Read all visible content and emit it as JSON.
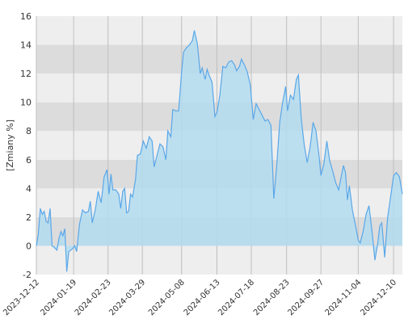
{
  "chart_data": {
    "type": "area",
    "ylabel": "[Zmiany %]",
    "xlabel": "",
    "title": "",
    "xlim": [
      "2023-12-12",
      "2024-12-19"
    ],
    "ylim": [
      -2,
      16
    ],
    "yticks": [
      -2,
      0,
      2,
      4,
      6,
      8,
      10,
      12,
      14,
      16
    ],
    "xticks": [
      "2023-12-12",
      "2024-01-19",
      "2024-02-23",
      "2024-03-29",
      "2024-05-08",
      "2024-06-13",
      "2024-07-18",
      "2024-08-23",
      "2024-09-27",
      "2024-11-04",
      "2024-12-10"
    ],
    "grid": true,
    "colors": {
      "line": "#5aa7e8",
      "fill": "#b3dcf0",
      "band_dark": "#dcdcdc",
      "band_light": "#eeeeee",
      "gridline": "#bfbfbf"
    },
    "series": [
      {
        "values": [
          [
            "2023-12-12",
            0.0
          ],
          [
            "2023-12-14",
            0.8
          ],
          [
            "2023-12-16",
            2.6
          ],
          [
            "2023-12-18",
            2.2
          ],
          [
            "2023-12-20",
            2.4
          ],
          [
            "2023-12-22",
            1.7
          ],
          [
            "2023-12-24",
            1.6
          ],
          [
            "2023-12-26",
            2.6
          ],
          [
            "2023-12-28",
            0.0
          ],
          [
            "2023-12-30",
            -0.1
          ],
          [
            "2024-01-02",
            -0.3
          ],
          [
            "2024-01-04",
            0.5
          ],
          [
            "2024-01-06",
            1.0
          ],
          [
            "2024-01-08",
            0.7
          ],
          [
            "2024-01-10",
            1.2
          ],
          [
            "2024-01-12",
            -1.8
          ],
          [
            "2024-01-14",
            -0.4
          ],
          [
            "2024-01-16",
            -0.3
          ],
          [
            "2024-01-18",
            -0.2
          ],
          [
            "2024-01-20",
            0.0
          ],
          [
            "2024-01-22",
            -0.4
          ],
          [
            "2024-01-25",
            1.5
          ],
          [
            "2024-01-28",
            2.5
          ],
          [
            "2024-01-31",
            2.3
          ],
          [
            "2024-02-03",
            2.4
          ],
          [
            "2024-02-05",
            3.1
          ],
          [
            "2024-02-07",
            1.6
          ],
          [
            "2024-02-10",
            2.5
          ],
          [
            "2024-02-13",
            3.8
          ],
          [
            "2024-02-16",
            3.0
          ],
          [
            "2024-02-19",
            4.8
          ],
          [
            "2024-02-22",
            5.3
          ],
          [
            "2024-02-24",
            3.6
          ],
          [
            "2024-02-26",
            5.0
          ],
          [
            "2024-02-28",
            3.9
          ],
          [
            "2024-03-02",
            3.9
          ],
          [
            "2024-03-05",
            3.6
          ],
          [
            "2024-03-07",
            2.6
          ],
          [
            "2024-03-09",
            3.8
          ],
          [
            "2024-03-11",
            4.0
          ],
          [
            "2024-03-13",
            2.3
          ],
          [
            "2024-03-15",
            2.4
          ],
          [
            "2024-03-17",
            3.6
          ],
          [
            "2024-03-19",
            3.4
          ],
          [
            "2024-03-22",
            4.6
          ],
          [
            "2024-03-24",
            6.3
          ],
          [
            "2024-03-27",
            6.4
          ],
          [
            "2024-03-30",
            7.3
          ],
          [
            "2024-04-02",
            6.8
          ],
          [
            "2024-04-05",
            7.6
          ],
          [
            "2024-04-08",
            7.3
          ],
          [
            "2024-04-10",
            5.5
          ],
          [
            "2024-04-13",
            6.3
          ],
          [
            "2024-04-16",
            7.1
          ],
          [
            "2024-04-19",
            6.9
          ],
          [
            "2024-04-22",
            6.0
          ],
          [
            "2024-04-24",
            8.0
          ],
          [
            "2024-04-27",
            7.6
          ],
          [
            "2024-04-29",
            9.5
          ],
          [
            "2024-05-02",
            9.4
          ],
          [
            "2024-05-05",
            9.4
          ],
          [
            "2024-05-08",
            12.1
          ],
          [
            "2024-05-10",
            13.5
          ],
          [
            "2024-05-13",
            13.8
          ],
          [
            "2024-05-16",
            14.0
          ],
          [
            "2024-05-19",
            14.3
          ],
          [
            "2024-05-21",
            15.0
          ],
          [
            "2024-05-24",
            14.1
          ],
          [
            "2024-05-27",
            12.0
          ],
          [
            "2024-05-29",
            12.4
          ],
          [
            "2024-06-01",
            11.6
          ],
          [
            "2024-06-03",
            12.3
          ],
          [
            "2024-06-05",
            11.9
          ],
          [
            "2024-06-08",
            11.4
          ],
          [
            "2024-06-11",
            9.0
          ],
          [
            "2024-06-13",
            9.3
          ],
          [
            "2024-06-16",
            10.5
          ],
          [
            "2024-06-19",
            12.5
          ],
          [
            "2024-06-22",
            12.4
          ],
          [
            "2024-06-25",
            12.8
          ],
          [
            "2024-06-28",
            12.9
          ],
          [
            "2024-07-01",
            12.6
          ],
          [
            "2024-07-03",
            12.2
          ],
          [
            "2024-07-06",
            12.5
          ],
          [
            "2024-07-08",
            13.0
          ],
          [
            "2024-07-11",
            12.6
          ],
          [
            "2024-07-14",
            12.1
          ],
          [
            "2024-07-17",
            11.2
          ],
          [
            "2024-07-20",
            8.8
          ],
          [
            "2024-07-23",
            9.9
          ],
          [
            "2024-07-26",
            9.5
          ],
          [
            "2024-07-29",
            9.1
          ],
          [
            "2024-08-01",
            8.7
          ],
          [
            "2024-08-04",
            8.8
          ],
          [
            "2024-08-07",
            8.4
          ],
          [
            "2024-08-10",
            3.3
          ],
          [
            "2024-08-13",
            5.6
          ],
          [
            "2024-08-16",
            8.6
          ],
          [
            "2024-08-19",
            10.0
          ],
          [
            "2024-08-22",
            11.1
          ],
          [
            "2024-08-24",
            9.4
          ],
          [
            "2024-08-27",
            10.5
          ],
          [
            "2024-08-30",
            10.2
          ],
          [
            "2024-09-02",
            11.6
          ],
          [
            "2024-09-04",
            11.9
          ],
          [
            "2024-09-07",
            8.8
          ],
          [
            "2024-09-10",
            7.0
          ],
          [
            "2024-09-13",
            5.8
          ],
          [
            "2024-09-16",
            6.9
          ],
          [
            "2024-09-19",
            8.6
          ],
          [
            "2024-09-22",
            8.0
          ],
          [
            "2024-09-25",
            6.3
          ],
          [
            "2024-09-27",
            4.9
          ],
          [
            "2024-09-30",
            5.7
          ],
          [
            "2024-10-03",
            7.3
          ],
          [
            "2024-10-06",
            5.9
          ],
          [
            "2024-10-09",
            5.2
          ],
          [
            "2024-10-12",
            4.4
          ],
          [
            "2024-10-15",
            3.9
          ],
          [
            "2024-10-17",
            4.6
          ],
          [
            "2024-10-20",
            5.6
          ],
          [
            "2024-10-22",
            5.1
          ],
          [
            "2024-10-24",
            3.2
          ],
          [
            "2024-10-26",
            4.2
          ],
          [
            "2024-10-29",
            2.5
          ],
          [
            "2024-11-01",
            1.5
          ],
          [
            "2024-11-04",
            0.4
          ],
          [
            "2024-11-06",
            0.2
          ],
          [
            "2024-11-09",
            1.0
          ],
          [
            "2024-11-12",
            2.2
          ],
          [
            "2024-11-15",
            2.8
          ],
          [
            "2024-11-18",
            1.0
          ],
          [
            "2024-11-21",
            -1.0
          ],
          [
            "2024-11-24",
            0.2
          ],
          [
            "2024-11-26",
            1.4
          ],
          [
            "2024-11-28",
            1.6
          ],
          [
            "2024-12-01",
            -0.8
          ],
          [
            "2024-12-04",
            2.0
          ],
          [
            "2024-12-07",
            3.4
          ],
          [
            "2024-12-10",
            4.9
          ],
          [
            "2024-12-13",
            5.1
          ],
          [
            "2024-12-16",
            4.8
          ],
          [
            "2024-12-19",
            3.6
          ]
        ]
      }
    ]
  }
}
